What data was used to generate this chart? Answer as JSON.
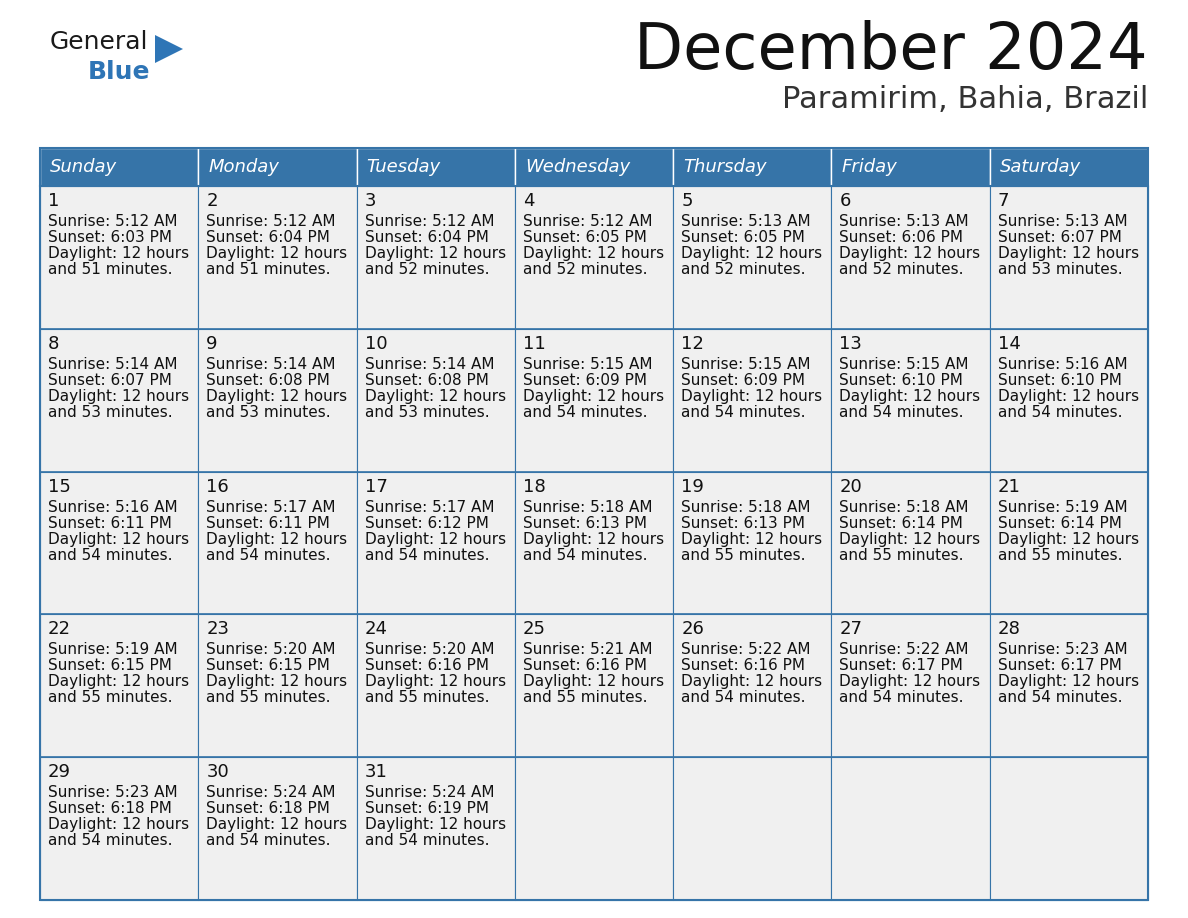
{
  "title": "December 2024",
  "subtitle": "Paramirim, Bahia, Brazil",
  "header_bg_color": "#3674a8",
  "header_text_color": "#FFFFFF",
  "cell_bg_color": "#F0F0F0",
  "border_color": "#3674a8",
  "text_color": "#111111",
  "days_of_week": [
    "Sunday",
    "Monday",
    "Tuesday",
    "Wednesday",
    "Thursday",
    "Friday",
    "Saturday"
  ],
  "weeks": [
    [
      {
        "day": "1",
        "sunrise": "5:12 AM",
        "sunset": "6:03 PM",
        "daylight_line1": "Daylight: 12 hours",
        "daylight_line2": "and 51 minutes."
      },
      {
        "day": "2",
        "sunrise": "5:12 AM",
        "sunset": "6:04 PM",
        "daylight_line1": "Daylight: 12 hours",
        "daylight_line2": "and 51 minutes."
      },
      {
        "day": "3",
        "sunrise": "5:12 AM",
        "sunset": "6:04 PM",
        "daylight_line1": "Daylight: 12 hours",
        "daylight_line2": "and 52 minutes."
      },
      {
        "day": "4",
        "sunrise": "5:12 AM",
        "sunset": "6:05 PM",
        "daylight_line1": "Daylight: 12 hours",
        "daylight_line2": "and 52 minutes."
      },
      {
        "day": "5",
        "sunrise": "5:13 AM",
        "sunset": "6:05 PM",
        "daylight_line1": "Daylight: 12 hours",
        "daylight_line2": "and 52 minutes."
      },
      {
        "day": "6",
        "sunrise": "5:13 AM",
        "sunset": "6:06 PM",
        "daylight_line1": "Daylight: 12 hours",
        "daylight_line2": "and 52 minutes."
      },
      {
        "day": "7",
        "sunrise": "5:13 AM",
        "sunset": "6:07 PM",
        "daylight_line1": "Daylight: 12 hours",
        "daylight_line2": "and 53 minutes."
      }
    ],
    [
      {
        "day": "8",
        "sunrise": "5:14 AM",
        "sunset": "6:07 PM",
        "daylight_line1": "Daylight: 12 hours",
        "daylight_line2": "and 53 minutes."
      },
      {
        "day": "9",
        "sunrise": "5:14 AM",
        "sunset": "6:08 PM",
        "daylight_line1": "Daylight: 12 hours",
        "daylight_line2": "and 53 minutes."
      },
      {
        "day": "10",
        "sunrise": "5:14 AM",
        "sunset": "6:08 PM",
        "daylight_line1": "Daylight: 12 hours",
        "daylight_line2": "and 53 minutes."
      },
      {
        "day": "11",
        "sunrise": "5:15 AM",
        "sunset": "6:09 PM",
        "daylight_line1": "Daylight: 12 hours",
        "daylight_line2": "and 54 minutes."
      },
      {
        "day": "12",
        "sunrise": "5:15 AM",
        "sunset": "6:09 PM",
        "daylight_line1": "Daylight: 12 hours",
        "daylight_line2": "and 54 minutes."
      },
      {
        "day": "13",
        "sunrise": "5:15 AM",
        "sunset": "6:10 PM",
        "daylight_line1": "Daylight: 12 hours",
        "daylight_line2": "and 54 minutes."
      },
      {
        "day": "14",
        "sunrise": "5:16 AM",
        "sunset": "6:10 PM",
        "daylight_line1": "Daylight: 12 hours",
        "daylight_line2": "and 54 minutes."
      }
    ],
    [
      {
        "day": "15",
        "sunrise": "5:16 AM",
        "sunset": "6:11 PM",
        "daylight_line1": "Daylight: 12 hours",
        "daylight_line2": "and 54 minutes."
      },
      {
        "day": "16",
        "sunrise": "5:17 AM",
        "sunset": "6:11 PM",
        "daylight_line1": "Daylight: 12 hours",
        "daylight_line2": "and 54 minutes."
      },
      {
        "day": "17",
        "sunrise": "5:17 AM",
        "sunset": "6:12 PM",
        "daylight_line1": "Daylight: 12 hours",
        "daylight_line2": "and 54 minutes."
      },
      {
        "day": "18",
        "sunrise": "5:18 AM",
        "sunset": "6:13 PM",
        "daylight_line1": "Daylight: 12 hours",
        "daylight_line2": "and 54 minutes."
      },
      {
        "day": "19",
        "sunrise": "5:18 AM",
        "sunset": "6:13 PM",
        "daylight_line1": "Daylight: 12 hours",
        "daylight_line2": "and 55 minutes."
      },
      {
        "day": "20",
        "sunrise": "5:18 AM",
        "sunset": "6:14 PM",
        "daylight_line1": "Daylight: 12 hours",
        "daylight_line2": "and 55 minutes."
      },
      {
        "day": "21",
        "sunrise": "5:19 AM",
        "sunset": "6:14 PM",
        "daylight_line1": "Daylight: 12 hours",
        "daylight_line2": "and 55 minutes."
      }
    ],
    [
      {
        "day": "22",
        "sunrise": "5:19 AM",
        "sunset": "6:15 PM",
        "daylight_line1": "Daylight: 12 hours",
        "daylight_line2": "and 55 minutes."
      },
      {
        "day": "23",
        "sunrise": "5:20 AM",
        "sunset": "6:15 PM",
        "daylight_line1": "Daylight: 12 hours",
        "daylight_line2": "and 55 minutes."
      },
      {
        "day": "24",
        "sunrise": "5:20 AM",
        "sunset": "6:16 PM",
        "daylight_line1": "Daylight: 12 hours",
        "daylight_line2": "and 55 minutes."
      },
      {
        "day": "25",
        "sunrise": "5:21 AM",
        "sunset": "6:16 PM",
        "daylight_line1": "Daylight: 12 hours",
        "daylight_line2": "and 55 minutes."
      },
      {
        "day": "26",
        "sunrise": "5:22 AM",
        "sunset": "6:16 PM",
        "daylight_line1": "Daylight: 12 hours",
        "daylight_line2": "and 54 minutes."
      },
      {
        "day": "27",
        "sunrise": "5:22 AM",
        "sunset": "6:17 PM",
        "daylight_line1": "Daylight: 12 hours",
        "daylight_line2": "and 54 minutes."
      },
      {
        "day": "28",
        "sunrise": "5:23 AM",
        "sunset": "6:17 PM",
        "daylight_line1": "Daylight: 12 hours",
        "daylight_line2": "and 54 minutes."
      }
    ],
    [
      {
        "day": "29",
        "sunrise": "5:23 AM",
        "sunset": "6:18 PM",
        "daylight_line1": "Daylight: 12 hours",
        "daylight_line2": "and 54 minutes."
      },
      {
        "day": "30",
        "sunrise": "5:24 AM",
        "sunset": "6:18 PM",
        "daylight_line1": "Daylight: 12 hours",
        "daylight_line2": "and 54 minutes."
      },
      {
        "day": "31",
        "sunrise": "5:24 AM",
        "sunset": "6:19 PM",
        "daylight_line1": "Daylight: 12 hours",
        "daylight_line2": "and 54 minutes."
      },
      null,
      null,
      null,
      null
    ]
  ],
  "logo_color_general": "#1a1a1a",
  "logo_color_blue": "#2E75B6",
  "logo_triangle_color": "#2E75B6",
  "fig_width": 11.88,
  "fig_height": 9.18,
  "dpi": 100
}
